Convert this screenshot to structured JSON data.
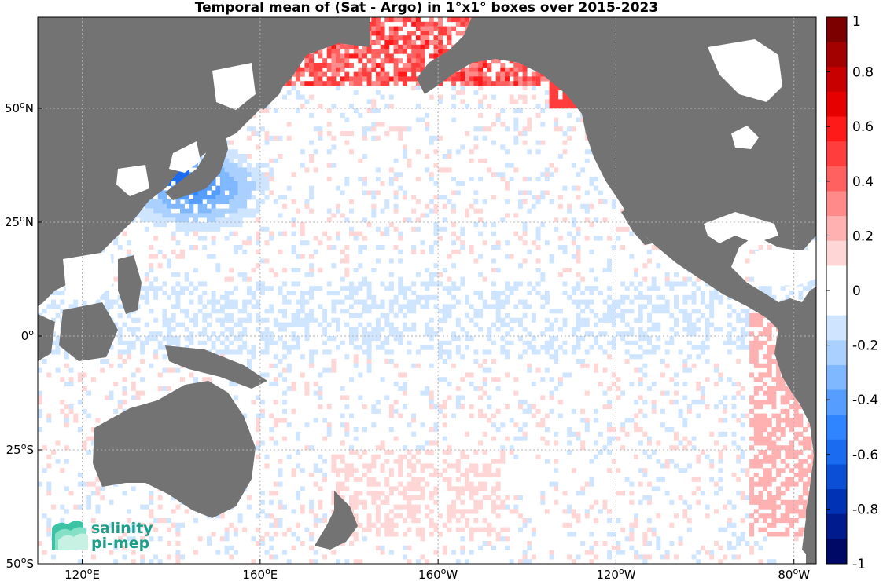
{
  "title": "Temporal mean of (Sat - Argo) in 1°x1° boxes over 2015-2023",
  "map": {
    "lon_ticks": [
      {
        "lon": 120,
        "base": "120",
        "sup": "o",
        "hemi": "E"
      },
      {
        "lon": 160,
        "base": "160",
        "sup": "o",
        "hemi": "E"
      },
      {
        "lon": 200,
        "base": "160",
        "sup": "o",
        "hemi": "W"
      },
      {
        "lon": 240,
        "base": "120",
        "sup": "o",
        "hemi": "W"
      },
      {
        "lon": 280,
        "base": "80",
        "sup": "o",
        "hemi": "W"
      }
    ],
    "lat_ticks": [
      {
        "lat": 50,
        "base": "50",
        "sup": "o",
        "hemi": "N"
      },
      {
        "lat": 25,
        "base": "25",
        "sup": "o",
        "hemi": "N"
      },
      {
        "lat": 0,
        "base": "0",
        "sup": "o",
        "hemi": ""
      },
      {
        "lat": -25,
        "base": "25",
        "sup": "o",
        "hemi": "S"
      },
      {
        "lat": -50,
        "base": "50",
        "sup": "o",
        "hemi": "S"
      }
    ],
    "lon_range": [
      110,
      285
    ],
    "lat_range": [
      -50,
      70
    ],
    "land_color": "#737373",
    "grid": "dotted"
  },
  "colorbar": {
    "range": [
      -1,
      1
    ],
    "tick_labels": [
      "1",
      "0.8",
      "0.6",
      "0.4",
      "0.2",
      "0",
      "-0.2",
      "-0.4",
      "-0.6",
      "-0.8",
      "-1"
    ],
    "tick_values": [
      1,
      0.8,
      0.6,
      0.4,
      0.2,
      0,
      -0.2,
      -0.4,
      -0.6,
      -0.8,
      -1
    ],
    "colors_top_to_bottom": [
      "#7d0000",
      "#a30000",
      "#c80000",
      "#e60000",
      "#ff1a1a",
      "#ff3d3d",
      "#ff6161",
      "#ff8a8a",
      "#ffb0b0",
      "#ffd6d6",
      "#ffffff",
      "#ffffff",
      "#cfe5ff",
      "#a9d0ff",
      "#80b8ff",
      "#559eff",
      "#2e85ff",
      "#1a6bf0",
      "#0a4fd6",
      "#0033b3",
      "#001c8c",
      "#000a66"
    ]
  },
  "logo": {
    "line1": "salinity",
    "line2": "pi-mep"
  }
}
